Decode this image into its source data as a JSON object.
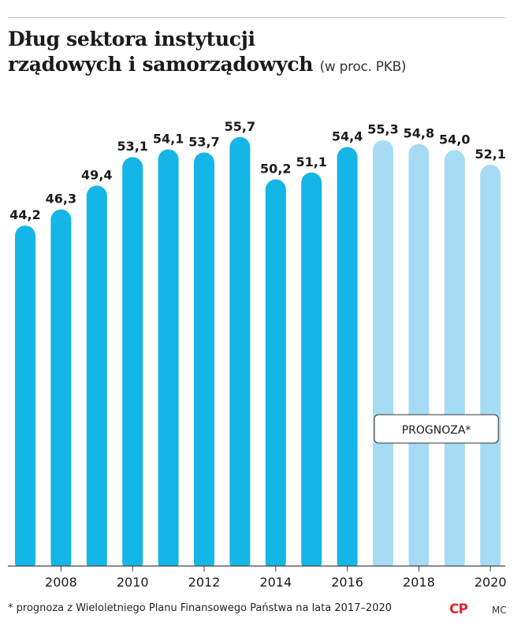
{
  "header": {
    "title_line1": "Dług sektora instytucji",
    "title_line2": "rządowych i samorządowych",
    "unit": "(w proc. PKB)"
  },
  "footer": {
    "footnote": "* prognoza z Wieloletniego Planu Finansowego Państwa na lata 2017–2020",
    "logo": "CP",
    "author": "MC"
  },
  "colors": {
    "actual": "#13b6e6",
    "forecast": "#a6dcf3",
    "baseline": "#444444"
  },
  "chart_data": {
    "type": "bar",
    "title": "Dług sektora instytucji rządowych i samorządowych",
    "ylabel": "(w proc. PKB)",
    "categories": [
      "2007",
      "2008",
      "2009",
      "2010",
      "2011",
      "2012",
      "2013",
      "2014",
      "2015",
      "2016",
      "2017",
      "2018",
      "2019",
      "2020"
    ],
    "tick_labels": [
      "2008",
      "2010",
      "2012",
      "2014",
      "2016",
      "2018",
      "2020"
    ],
    "values": [
      44.2,
      46.3,
      49.4,
      53.1,
      54.1,
      53.7,
      55.7,
      50.2,
      51.1,
      54.4,
      55.3,
      54.8,
      54.0,
      52.1
    ],
    "value_labels": [
      "44,2",
      "46,3",
      "49,4",
      "53,1",
      "54,1",
      "53,7",
      "55,7",
      "50,2",
      "51,1",
      "54,4",
      "55,3",
      "54,8",
      "54,0",
      "52,1"
    ],
    "forecast_from": "2017",
    "forecast_label": "PROGNOZA*",
    "ylim": [
      0,
      56
    ],
    "grid": false
  }
}
